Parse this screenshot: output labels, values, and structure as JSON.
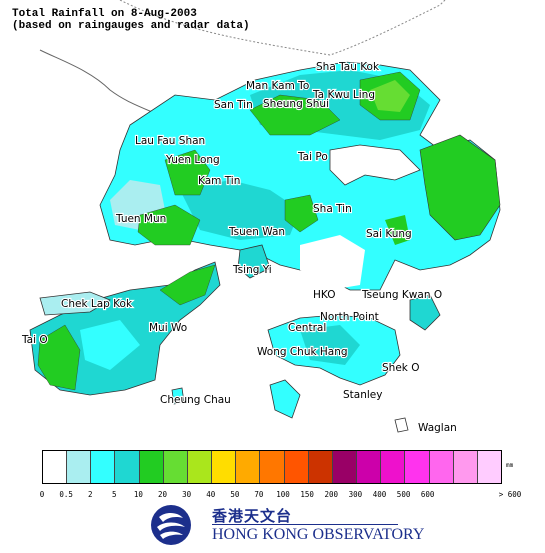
{
  "title": {
    "line1": "Total Rainfall on 8-Aug-2003",
    "line2": "(based on raingauges and radar data)"
  },
  "places": [
    "Sha Tau Kok",
    "Man Kam To",
    "Ta Kwu Ling",
    "Sheung Shui",
    "San Tin",
    "Lau Fau Shan",
    "Yuen Long",
    "Kam Tin",
    "Tai Po",
    "Tuen Mun",
    "Sha Tin",
    "Tsuen Wan",
    "Sai Kung",
    "Tsing Yi",
    "Chek Lap Kok",
    "HKO",
    "Tseung Kwan O",
    "Mui Wo",
    "North Point",
    "Central",
    "Tai O",
    "Wong Chuk Hang",
    "Shek O",
    "Cheung Chau",
    "Stanley",
    "Waglan"
  ],
  "legend": {
    "unit": "mm",
    "colors": [
      "#ffffff",
      "#aaeef0",
      "#33ffff",
      "#1fd7d2",
      "#22cc22",
      "#66dd33",
      "#aae61c",
      "#ffdd00",
      "#ffaa00",
      "#ff7700",
      "#ff5500",
      "#cc3300",
      "#990066",
      "#cc00aa",
      "#ee11cc",
      "#ff33ee",
      "#ff66ee",
      "#ff99ee",
      "#ffccff"
    ],
    "ticks": [
      "0",
      "0.5",
      "2",
      "5",
      "10",
      "20",
      "30",
      "40",
      "50",
      "70",
      "100",
      "150",
      "200",
      "300",
      "400",
      "500",
      "600",
      "> 600"
    ]
  },
  "logo": {
    "chinese": "香港天文台",
    "english": "HONG KONG OBSERVATORY",
    "colors": {
      "brand": "#1c2f8c"
    }
  }
}
